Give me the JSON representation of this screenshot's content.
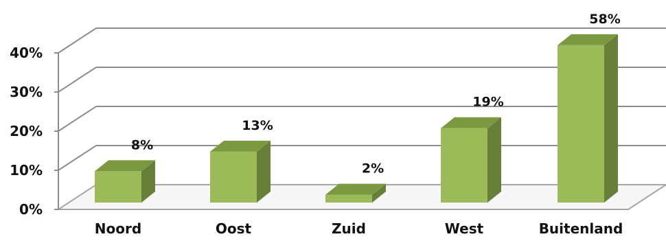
{
  "chart_data": {
    "type": "bar",
    "categories": [
      "Noord",
      "Oost",
      "Zuid",
      "West",
      "Buitenland"
    ],
    "values": [
      8,
      13,
      2,
      19,
      58
    ],
    "data_labels": [
      "8%",
      "13%",
      "2%",
      "19%",
      "58%"
    ],
    "y_ticks": [
      "0%",
      "10%",
      "20%",
      "30%",
      "40%"
    ],
    "ylim": [
      0,
      40
    ],
    "title": "",
    "xlabel": "",
    "ylabel": "",
    "grid": true,
    "style": "3d-column",
    "colors": {
      "bar_front": "#9bbb59",
      "bar_top": "#7b9a3f",
      "bar_side": "#66803a",
      "gridline": "#8c8c8c",
      "floor": "#a6a6a6"
    }
  }
}
